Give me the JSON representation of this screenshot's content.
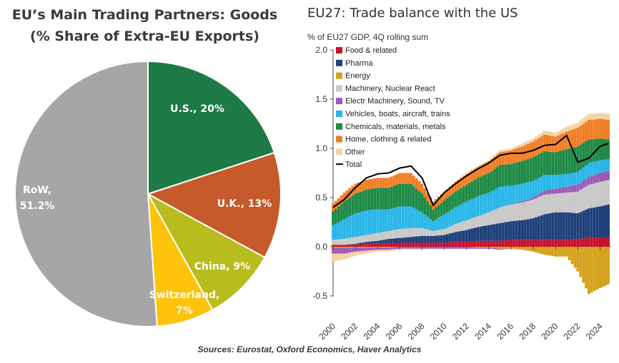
{
  "sources": "Sources: Eurostat, Oxford Economics, Haver Analytics",
  "chart_data": [
    {
      "type": "pie",
      "title_line1": "EU’s Main Trading Partners: Goods",
      "title_line2": "(% Share of Extra-EU Exports)",
      "slices": [
        {
          "label": "U.S., 20%",
          "value": 20,
          "color": "#1e7a46",
          "text_color": "#ffffff"
        },
        {
          "label": "U.K., 13%",
          "value": 13,
          "color": "#c65a2a",
          "text_color": "#ffffff"
        },
        {
          "label": "China, 9%",
          "value": 9,
          "color": "#b8bc1c",
          "text_color": "#ffffff"
        },
        {
          "label_line1": "Switzerland,",
          "label_line2": "7%",
          "value": 7,
          "color": "#fdc20a",
          "text_color": "#ffffff"
        },
        {
          "label_line1": "RoW,",
          "label_line2": "51.2%",
          "value": 51.2,
          "color": "#a6a6a6",
          "text_color": "#ffffff"
        }
      ]
    },
    {
      "type": "area",
      "stacked": true,
      "title": "EU27: Trade balance with the US",
      "subtitle": "% of EU27 GDP, 4Q rolling sum",
      "xlim": [
        2000,
        2025
      ],
      "ylim": [
        -0.5,
        2.0
      ],
      "yticks": [
        -0.5,
        0.0,
        0.5,
        1.0,
        1.5,
        2.0
      ],
      "ytick_labels": [
        "-0.5",
        "0.0",
        "0.5",
        "1.0",
        "1.5",
        "2.0"
      ],
      "xticks": [
        2000,
        2002,
        2004,
        2006,
        2008,
        2010,
        2012,
        2014,
        2016,
        2018,
        2020,
        2022,
        2024
      ],
      "x": [
        2000,
        2001,
        2002,
        2003,
        2004,
        2005,
        2006,
        2007,
        2008,
        2009,
        2010,
        2011,
        2012,
        2013,
        2014,
        2015,
        2016,
        2017,
        2018,
        2019,
        2020,
        2021,
        2022,
        2023,
        2024,
        2024.75
      ],
      "series": [
        {
          "name": "Food & related",
          "color": "#c8102e",
          "values": [
            0.02,
            0.02,
            0.02,
            0.03,
            0.03,
            0.04,
            0.04,
            0.04,
            0.04,
            0.04,
            0.04,
            0.05,
            0.05,
            0.06,
            0.06,
            0.06,
            0.07,
            0.07,
            0.07,
            0.07,
            0.07,
            0.07,
            0.08,
            0.09,
            0.09,
            0.09
          ]
        },
        {
          "name": "Pharma",
          "color": "#1f3f7a",
          "values": [
            0.0,
            0.0,
            0.01,
            0.02,
            0.03,
            0.04,
            0.05,
            0.06,
            0.07,
            0.07,
            0.08,
            0.1,
            0.12,
            0.14,
            0.16,
            0.18,
            0.19,
            0.2,
            0.22,
            0.26,
            0.28,
            0.28,
            0.26,
            0.3,
            0.32,
            0.34
          ]
        },
        {
          "name": "Energy",
          "color": "#d4a21b",
          "values": [
            -0.01,
            -0.01,
            -0.01,
            -0.01,
            -0.01,
            -0.01,
            0.0,
            0.0,
            0.0,
            0.0,
            0.0,
            0.0,
            0.0,
            -0.01,
            -0.01,
            -0.02,
            -0.02,
            -0.03,
            -0.05,
            -0.08,
            -0.1,
            -0.1,
            -0.25,
            -0.48,
            -0.42,
            -0.38
          ]
        },
        {
          "name": "Machinery, Nuclear React",
          "color": "#c8c8c8",
          "values": [
            0.05,
            0.06,
            0.07,
            0.07,
            0.08,
            0.08,
            0.09,
            0.09,
            0.08,
            0.05,
            0.06,
            0.08,
            0.1,
            0.11,
            0.13,
            0.16,
            0.17,
            0.18,
            0.19,
            0.2,
            0.19,
            0.2,
            0.22,
            0.24,
            0.25,
            0.25
          ]
        },
        {
          "name": "Electr Machinery, Sound, TV",
          "color": "#9b59b6",
          "values": [
            -0.06,
            -0.06,
            -0.04,
            -0.03,
            -0.02,
            -0.02,
            -0.02,
            -0.02,
            -0.02,
            -0.02,
            -0.02,
            -0.02,
            -0.02,
            -0.01,
            -0.01,
            -0.01,
            0.0,
            0.01,
            0.02,
            0.04,
            0.05,
            0.06,
            0.07,
            0.08,
            0.09,
            0.09
          ]
        },
        {
          "name": "Vehicles, boats, aircraft, trains",
          "color": "#29b6e8",
          "values": [
            0.15,
            0.2,
            0.24,
            0.25,
            0.24,
            0.22,
            0.23,
            0.22,
            0.16,
            0.1,
            0.15,
            0.17,
            0.19,
            0.2,
            0.2,
            0.21,
            0.19,
            0.18,
            0.17,
            0.16,
            0.14,
            0.13,
            0.13,
            0.14,
            0.13,
            0.12
          ]
        },
        {
          "name": "Chemicals, materials, metals",
          "color": "#1e8a46",
          "values": [
            0.14,
            0.18,
            0.2,
            0.21,
            0.22,
            0.22,
            0.23,
            0.23,
            0.19,
            0.12,
            0.14,
            0.16,
            0.17,
            0.19,
            0.2,
            0.22,
            0.22,
            0.23,
            0.24,
            0.24,
            0.23,
            0.25,
            0.26,
            0.24,
            0.22,
            0.2
          ]
        },
        {
          "name": "Home, clothing & related",
          "color": "#f07e26",
          "values": [
            0.08,
            0.09,
            0.1,
            0.1,
            0.1,
            0.1,
            0.11,
            0.11,
            0.1,
            0.08,
            0.09,
            0.1,
            0.11,
            0.11,
            0.12,
            0.13,
            0.14,
            0.15,
            0.16,
            0.17,
            0.16,
            0.18,
            0.19,
            0.2,
            0.2,
            0.2
          ]
        },
        {
          "name": "Other",
          "color": "#f3d3a0",
          "values": [
            -0.08,
            -0.06,
            -0.04,
            -0.03,
            -0.02,
            -0.02,
            -0.01,
            -0.01,
            -0.01,
            0.0,
            0.0,
            0.0,
            0.01,
            0.01,
            0.01,
            0.02,
            0.02,
            0.03,
            0.03,
            0.04,
            0.04,
            0.05,
            0.05,
            0.06,
            0.06,
            0.06
          ]
        }
      ],
      "total": {
        "name": "Total",
        "color": "#000000",
        "values": [
          0.4,
          0.48,
          0.6,
          0.7,
          0.74,
          0.75,
          0.8,
          0.82,
          0.7,
          0.42,
          0.55,
          0.64,
          0.72,
          0.79,
          0.85,
          0.93,
          0.95,
          0.95,
          0.98,
          1.03,
          1.04,
          1.13,
          0.86,
          0.9,
          1.02,
          1.05
        ]
      }
    }
  ]
}
